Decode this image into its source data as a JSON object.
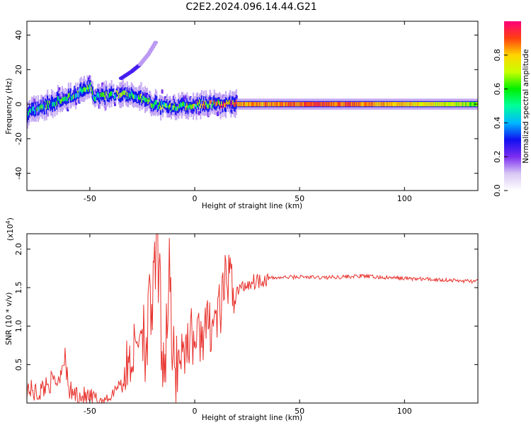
{
  "title": "C2E2.2024.096.14.44.G21",
  "chart_data": [
    {
      "type": "heatmap",
      "xlabel": "Height of straight line (km)",
      "ylabel": "Frequency (Hz)",
      "xlim": [
        -80,
        135
      ],
      "ylim": [
        -50,
        48
      ],
      "xticks": [
        -50,
        0,
        50,
        100
      ],
      "yticks": [
        -40,
        -20,
        0,
        20,
        40
      ],
      "colorbar": {
        "label": "Normalized spectral amplitude",
        "ticks": [
          "0.0",
          "0.2",
          "0.4",
          "0.6",
          "0.8"
        ],
        "tick_values": [
          0.0,
          0.2,
          0.4,
          0.6,
          0.8
        ],
        "range": [
          0,
          1
        ],
        "colormap": [
          "#ffffff",
          "#d8c8f4",
          "#7b2cf0",
          "#1010f0",
          "#00b8ff",
          "#00ff9c",
          "#00f000",
          "#c8ff00",
          "#ffd400",
          "#ff4010",
          "#ff007a"
        ]
      },
      "ridge": [
        {
          "x": -80,
          "freq": -5,
          "amp": 0.4
        },
        {
          "x": -75,
          "freq": -3,
          "amp": 0.45
        },
        {
          "x": -70,
          "freq": 0,
          "amp": 0.5
        },
        {
          "x": -65,
          "freq": 2,
          "amp": 0.45
        },
        {
          "x": -60,
          "freq": 4,
          "amp": 0.5
        },
        {
          "x": -55,
          "freq": 7,
          "amp": 0.45
        },
        {
          "x": -50,
          "freq": 10,
          "amp": 0.5
        },
        {
          "x": -48,
          "freq": 4,
          "amp": 0.4
        },
        {
          "x": -42,
          "freq": 5,
          "amp": 0.5
        },
        {
          "x": -36,
          "freq": 6,
          "amp": 0.55
        },
        {
          "x": -30,
          "freq": 5,
          "amp": 0.5
        },
        {
          "x": -25,
          "freq": 3,
          "amp": 0.5
        },
        {
          "x": -20,
          "freq": 0,
          "amp": 0.55
        },
        {
          "x": -15,
          "freq": -1,
          "amp": 0.55
        },
        {
          "x": -10,
          "freq": -2,
          "amp": 0.55
        },
        {
          "x": -5,
          "freq": -1,
          "amp": 0.6
        },
        {
          "x": 0,
          "freq": 0,
          "amp": 0.65
        },
        {
          "x": 5,
          "freq": 0,
          "amp": 0.7
        },
        {
          "x": 10,
          "freq": 0,
          "amp": 0.75
        },
        {
          "x": 15,
          "freq": 0,
          "amp": 0.8
        },
        {
          "x": 20,
          "freq": 0,
          "amp": 0.82
        },
        {
          "x": 30,
          "freq": 0,
          "amp": 0.85
        },
        {
          "x": 40,
          "freq": 0,
          "amp": 0.86
        },
        {
          "x": 50,
          "freq": 0,
          "amp": 0.87
        },
        {
          "x": 60,
          "freq": 0,
          "amp": 0.9
        },
        {
          "x": 70,
          "freq": 0,
          "amp": 0.88
        },
        {
          "x": 80,
          "freq": 0,
          "amp": 0.85
        },
        {
          "x": 90,
          "freq": 0,
          "amp": 0.82
        },
        {
          "x": 100,
          "freq": 0,
          "amp": 0.8
        },
        {
          "x": 110,
          "freq": 0,
          "amp": 0.75
        },
        {
          "x": 120,
          "freq": 0,
          "amp": 0.7
        },
        {
          "x": 135,
          "freq": 0,
          "amp": 0.65
        }
      ],
      "secondary_branch": [
        {
          "x": -35,
          "freq": 15
        },
        {
          "x": -30,
          "freq": 19
        },
        {
          "x": -26,
          "freq": 23
        },
        {
          "x": -22,
          "freq": 29
        },
        {
          "x": -18,
          "freq": 37
        }
      ]
    },
    {
      "type": "line",
      "xlabel": "Height of straight line (km)",
      "ylabel": "SNR (10 * v/v)",
      "y_multiplier": "(x10",
      "y_multiplier_exp": "4",
      "y_multiplier_close": ")",
      "xlim": [
        -80,
        135
      ],
      "ylim": [
        0,
        22000
      ],
      "xticks": [
        -50,
        0,
        50,
        100
      ],
      "yticks": [
        5000,
        10000,
        15000,
        20000
      ],
      "ytick_labels": [
        "0.5",
        "1.0",
        "1.5",
        "2.0"
      ],
      "line_color": "#e8322d",
      "series": [
        {
          "x": [
            -80,
            -75,
            -70,
            -65,
            -62,
            -60,
            -55,
            -50,
            -45,
            -40,
            -38,
            -35,
            -33,
            -30,
            -28,
            -25,
            -23,
            -21,
            -19,
            -18,
            -16,
            -14,
            -12,
            -11,
            -10,
            -8,
            -5,
            -2,
            0,
            5,
            10,
            13,
            15,
            20,
            25,
            30,
            35,
            40,
            50,
            60,
            70,
            80,
            90,
            100,
            110,
            120,
            125,
            135
          ],
          "y": [
            2000,
            1200,
            2600,
            3000,
            6300,
            1500,
            1000,
            500,
            400,
            700,
            1800,
            3000,
            4000,
            6000,
            7500,
            10800,
            8000,
            12000,
            15000,
            22000,
            9000,
            6000,
            19000,
            5000,
            4500,
            6000,
            7000,
            9000,
            8000,
            9500,
            11000,
            12500,
            16500,
            14500,
            15500,
            16000,
            16200,
            16300,
            16400,
            16300,
            16400,
            16500,
            16300,
            16200,
            16100,
            16000,
            15900,
            15800
          ]
        }
      ]
    }
  ]
}
